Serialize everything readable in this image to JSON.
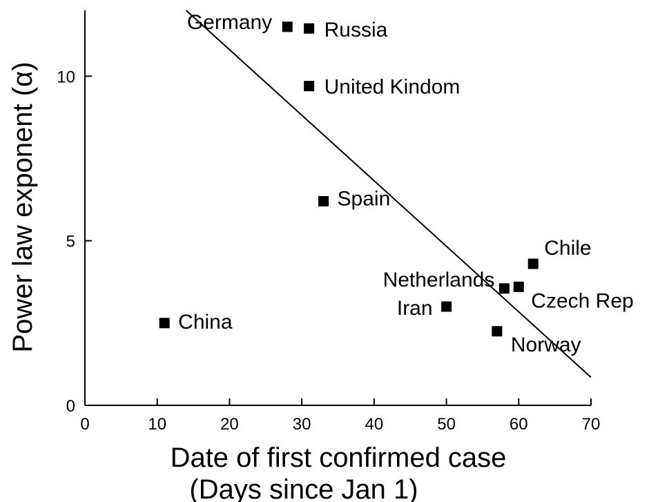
{
  "chart_data": {
    "type": "scatter",
    "xlabel": "Date of first confirmed case",
    "xlabel2": "(Days since Jan 1)",
    "ylabel": "Power law exponent (α)",
    "xlim": [
      0,
      70
    ],
    "ylim": [
      0,
      12
    ],
    "xticks": [
      0,
      10,
      20,
      30,
      40,
      50,
      60,
      70
    ],
    "yticks": [
      0,
      5,
      10
    ],
    "grid": false,
    "points": [
      {
        "label": "Germany",
        "x": 28,
        "y": 11.5
      },
      {
        "label": "Russia",
        "x": 31,
        "y": 11.45
      },
      {
        "label": "United Kindom",
        "x": 31,
        "y": 9.7
      },
      {
        "label": "Spain",
        "x": 33,
        "y": 6.2
      },
      {
        "label": "China",
        "x": 11,
        "y": 2.5
      },
      {
        "label": "Iran",
        "x": 50,
        "y": 3.0
      },
      {
        "label": "Netherlands",
        "x": 58,
        "y": 3.55
      },
      {
        "label": "Czech Rep",
        "x": 60,
        "y": 3.6
      },
      {
        "label": "Chile",
        "x": 62,
        "y": 4.3
      },
      {
        "label": "Norway",
        "x": 57,
        "y": 2.25
      }
    ],
    "fit_line": {
      "x": [
        14,
        70
      ],
      "y": [
        12.0,
        0.85
      ]
    }
  }
}
